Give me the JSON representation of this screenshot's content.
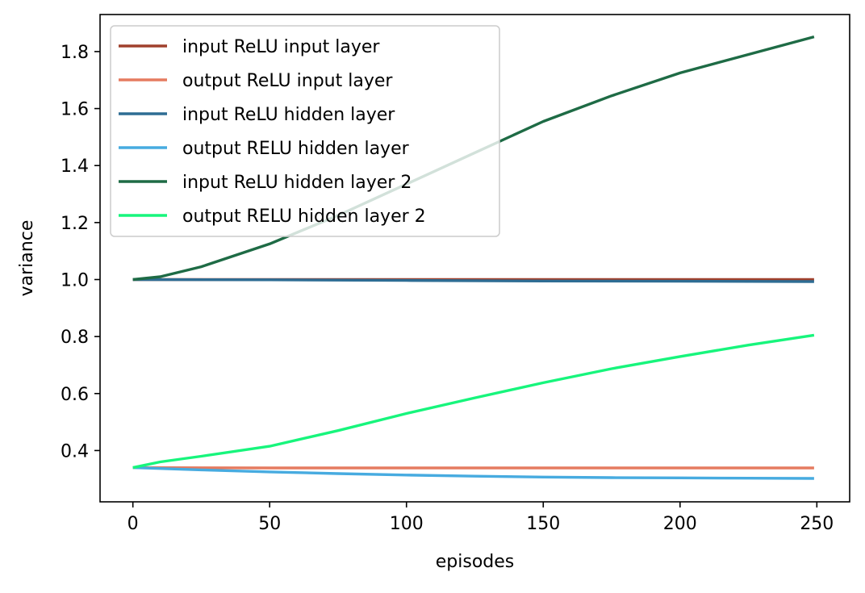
{
  "chart_data": {
    "type": "line",
    "title": "",
    "xlabel": "episodes",
    "ylabel": "variance",
    "xlim": [
      -12,
      262
    ],
    "ylim": [
      0.22,
      1.93
    ],
    "x_ticks": [
      0,
      50,
      100,
      150,
      200,
      250
    ],
    "y_ticks": [
      0.4,
      0.6,
      0.8,
      1.0,
      1.2,
      1.4,
      1.6,
      1.8
    ],
    "x_tick_labels": [
      "0",
      "50",
      "100",
      "150",
      "200",
      "250"
    ],
    "y_tick_labels": [
      "0.4",
      "0.6",
      "0.8",
      "1.0",
      "1.2",
      "1.4",
      "1.6",
      "1.8"
    ],
    "grid": false,
    "legend_position": "upper-left",
    "series": [
      {
        "name": "input ReLU input layer",
        "color": "#a0402c",
        "x": [
          0,
          50,
          100,
          150,
          200,
          249
        ],
        "y": [
          1.0,
          1.0,
          1.0,
          1.0,
          1.0,
          1.0
        ]
      },
      {
        "name": "output ReLU input layer",
        "color": "#e57b60",
        "x": [
          0,
          50,
          100,
          150,
          200,
          249
        ],
        "y": [
          0.34,
          0.339,
          0.339,
          0.339,
          0.339,
          0.339
        ]
      },
      {
        "name": "input ReLU hidden layer",
        "color": "#2e6d94",
        "x": [
          0,
          50,
          100,
          150,
          200,
          249
        ],
        "y": [
          1.0,
          0.999,
          0.997,
          0.995,
          0.994,
          0.993
        ]
      },
      {
        "name": "output RELU hidden layer",
        "color": "#47abe0",
        "x": [
          0,
          25,
          50,
          75,
          100,
          125,
          150,
          175,
          200,
          225,
          249
        ],
        "y": [
          0.34,
          0.332,
          0.325,
          0.319,
          0.314,
          0.31,
          0.307,
          0.305,
          0.304,
          0.303,
          0.302
        ]
      },
      {
        "name": "input ReLU hidden layer 2",
        "color": "#1e6b45",
        "x": [
          0,
          10,
          25,
          50,
          75,
          100,
          125,
          150,
          175,
          200,
          225,
          249
        ],
        "y": [
          1.0,
          1.01,
          1.045,
          1.125,
          1.225,
          1.335,
          1.445,
          1.555,
          1.645,
          1.725,
          1.79,
          1.852
        ]
      },
      {
        "name": "output RELU hidden layer 2",
        "color": "#17f57c",
        "x": [
          0,
          10,
          25,
          50,
          75,
          100,
          125,
          150,
          175,
          200,
          225,
          249
        ],
        "y": [
          0.34,
          0.36,
          0.38,
          0.415,
          0.47,
          0.53,
          0.585,
          0.638,
          0.687,
          0.73,
          0.77,
          0.805
        ]
      }
    ]
  }
}
